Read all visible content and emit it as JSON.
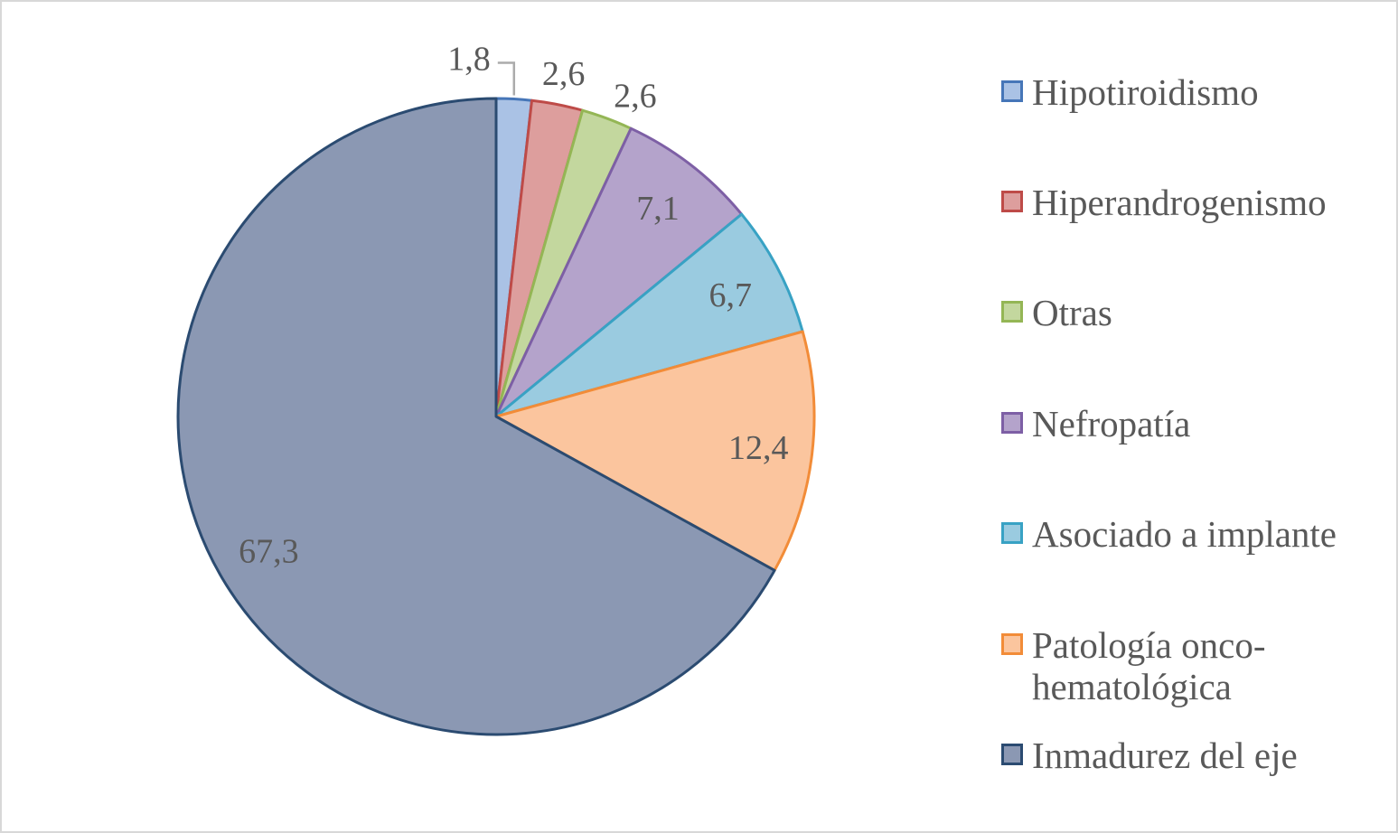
{
  "chart_data": {
    "type": "pie",
    "title": "",
    "legend_position": "right",
    "direction": "clockwise",
    "start_angle_deg": 0,
    "decimal_separator": ",",
    "label_color": "#595959",
    "leader_line_color": "#ababab",
    "background_color": "#ffffff",
    "frame_border_color": "#d8d8d8",
    "slices": [
      {
        "name": "Hipotiroidismo",
        "value": 1.8,
        "label": "1,8",
        "fill": "#aac2e5",
        "stroke": "#4676b8"
      },
      {
        "name": "Hiperandrogenismo",
        "value": 2.6,
        "label": "2,6",
        "fill": "#dd9e9d",
        "stroke": "#be4b48"
      },
      {
        "name": "Otras",
        "value": 2.6,
        "label": "2,6",
        "fill": "#c3d79e",
        "stroke": "#94b655"
      },
      {
        "name": "Nefropatía",
        "value": 7.1,
        "label": "7,1",
        "fill": "#b4a3cb",
        "stroke": "#7d5fa5"
      },
      {
        "name": "Asociado a implante",
        "value": 6.7,
        "label": "6,7",
        "fill": "#9acbe0",
        "stroke": "#38a2c4"
      },
      {
        "name": "Patología onco-hematológica",
        "value": 12.4,
        "label": "12,4",
        "fill": "#fbc59e",
        "stroke": "#f28c38"
      },
      {
        "name": "Inmadurez del eje",
        "value": 67.3,
        "label": "67,3",
        "fill": "#8b98b3",
        "stroke": "#2b4b71"
      }
    ]
  }
}
